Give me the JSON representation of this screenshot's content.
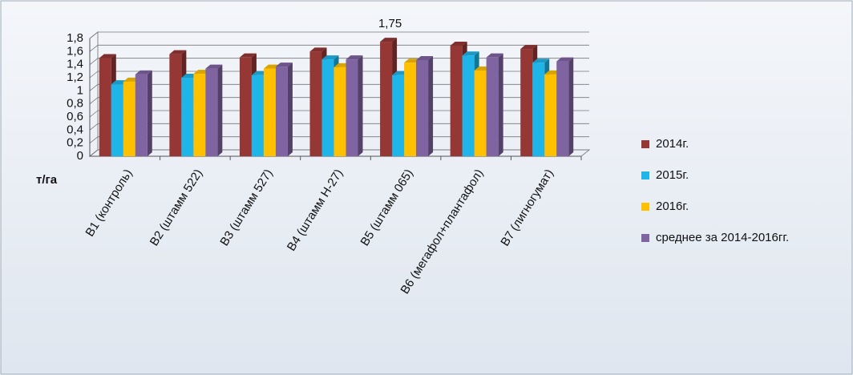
{
  "chart_data": {
    "type": "bar3d",
    "y_label": "т/га",
    "categories": [
      "В1 (контроль)",
      "В2 (штамм 522)",
      "В3 (штамм 527)",
      "В4 (штамм Н-27)",
      "В5 (штамм 065)",
      "В6 (мегафол+плантафол)",
      "В7 (лигногумат)"
    ],
    "series": [
      {
        "name": "2014г.",
        "color": "#953735",
        "values": [
          1.5,
          1.56,
          1.51,
          1.6,
          1.75,
          1.69,
          1.64
        ],
        "value_labels": [
          null,
          null,
          null,
          null,
          "1,75",
          null,
          null
        ]
      },
      {
        "name": "2015г.",
        "color": "#1fb5e8",
        "values": [
          1.1,
          1.2,
          1.24,
          1.48,
          1.24,
          1.54,
          1.43
        ]
      },
      {
        "name": "2016г.",
        "color": "#ffc000",
        "values": [
          1.14,
          1.26,
          1.34,
          1.36,
          1.43,
          1.31,
          1.25
        ]
      },
      {
        "name": "среднее за 2014-2016гг.",
        "color": "#8064a2",
        "values": [
          1.25,
          1.34,
          1.37,
          1.48,
          1.47,
          1.51,
          1.45
        ]
      }
    ],
    "ylim": [
      0,
      1.8
    ],
    "yticks": [
      0,
      {
        "value": 0.2,
        "label": "0,2"
      },
      {
        "value": 0.4,
        "label": "0,4"
      },
      {
        "value": 0.6,
        "label": "0,6"
      },
      {
        "value": 0.8,
        "label": "0,8"
      },
      1,
      {
        "value": 1.2,
        "label": "1,2"
      },
      {
        "value": 1.4,
        "label": "1,4"
      },
      {
        "value": 1.6,
        "label": "1,6"
      },
      {
        "value": 1.8,
        "label": "1,8"
      }
    ],
    "grid": true,
    "legend": "right"
  }
}
